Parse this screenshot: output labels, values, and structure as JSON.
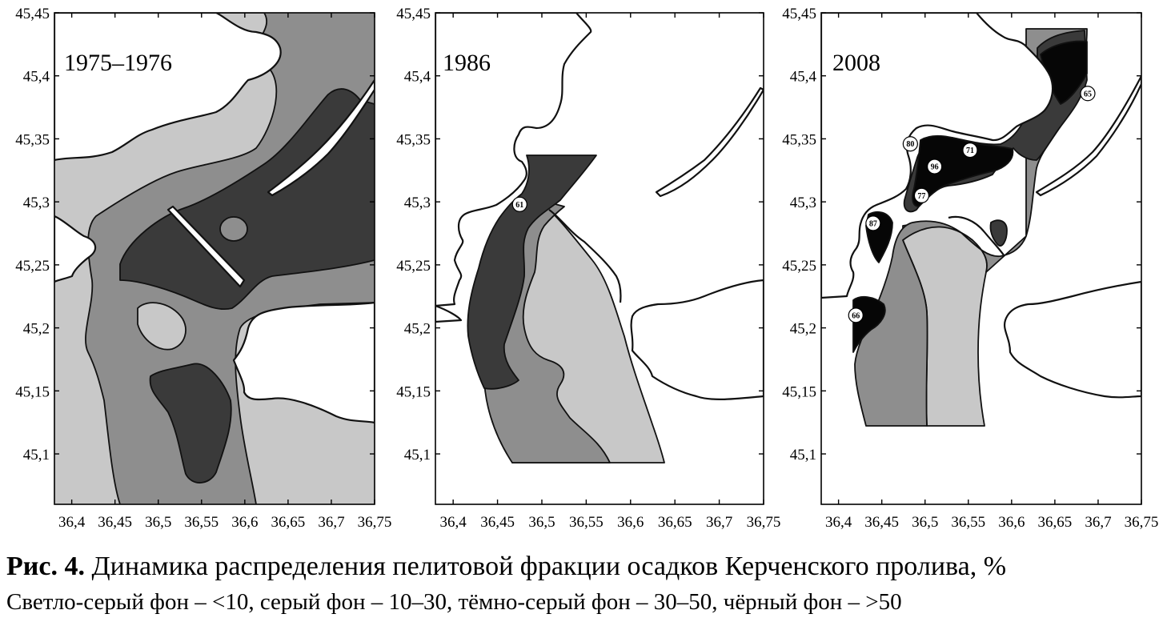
{
  "figure": {
    "panels": [
      {
        "id": "panel-1975",
        "label": "1975–1976",
        "stations": []
      },
      {
        "id": "panel-1986",
        "label": "1986",
        "stations": [
          {
            "label": "61",
            "lon": 36.475,
            "lat": 45.298
          }
        ]
      },
      {
        "id": "panel-2008",
        "label": "2008",
        "stations": [
          {
            "label": "80",
            "lon": 36.483,
            "lat": 45.346
          },
          {
            "label": "71",
            "lon": 36.552,
            "lat": 45.341
          },
          {
            "label": "96",
            "lon": 36.511,
            "lat": 45.328
          },
          {
            "label": "77",
            "lon": 36.496,
            "lat": 45.305
          },
          {
            "label": "87",
            "lon": 36.44,
            "lat": 45.283
          },
          {
            "label": "65",
            "lon": 36.688,
            "lat": 45.386
          },
          {
            "label": "66",
            "lon": 36.42,
            "lat": 45.21
          }
        ]
      }
    ],
    "x_ticks": [
      "36,4",
      "36,45",
      "36,5",
      "36,55",
      "36,6",
      "36,65",
      "36,7",
      "36,75"
    ],
    "x_tick_values": [
      36.4,
      36.45,
      36.5,
      36.55,
      36.6,
      36.65,
      36.7,
      36.75
    ],
    "y_ticks": [
      "45,45",
      "45,4",
      "45,35",
      "45,3",
      "45,25",
      "45,2",
      "45,15",
      "45,1"
    ],
    "y_tick_values": [
      45.45,
      45.4,
      45.35,
      45.3,
      45.25,
      45.2,
      45.15,
      45.1
    ],
    "x_range": [
      36.38,
      36.75
    ],
    "y_range": [
      45.06,
      45.45
    ],
    "colors": {
      "light_gray": "#c8c8c8",
      "gray": "#8e8e8e",
      "dark_gray": "#3a3a3a",
      "black": "#060606",
      "land": "#ffffff",
      "outline": "#111111"
    }
  },
  "caption": {
    "prefix": "Рис. 4.",
    "title": " Динамика распределения пелитовой фракции осадков Керченского пролива, %",
    "legend": "Светло-серый фон – <10, серый фон – 10–30, тёмно-серый фон – 30–50, чёрный фон – >50"
  }
}
